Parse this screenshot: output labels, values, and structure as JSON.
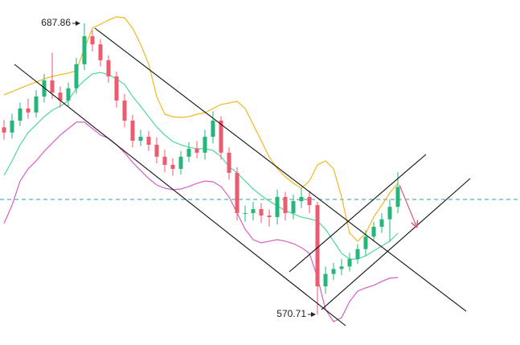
{
  "chart_data": {
    "type": "candlestick",
    "ylim": [
      558.4,
      697.25
    ],
    "open": [
      646.0,
      643.9,
      648.7,
      653.6,
      652.0,
      658.4,
      664.9,
      660.0,
      656.8,
      661.7,
      671.4,
      682.7,
      679.4,
      673.0,
      666.5,
      656.8,
      648.7,
      640.6,
      642.2,
      639.0,
      634.2,
      630.9,
      629.3,
      634.2,
      637.4,
      635.8,
      642.2,
      648.7,
      635.8,
      627.7,
      611.5,
      611.5,
      613.1,
      610.5,
      609.9,
      618.0,
      611.5,
      616.3,
      618.0,
      614.7,
      582.0,
      587.0,
      589.0,
      590.0,
      593.0,
      597.0,
      602.0,
      606.0,
      609.0,
      614.0
    ],
    "high": [
      649.0,
      651.5,
      656.0,
      657.5,
      661.0,
      667.5,
      676.0,
      662.5,
      664.0,
      674.0,
      687.86,
      685.0,
      681.5,
      675.0,
      668.5,
      659.5,
      651.0,
      645.0,
      644.5,
      642.0,
      637.0,
      633.5,
      636.5,
      640.0,
      640.5,
      645.0,
      652.5,
      650.5,
      638.0,
      630.0,
      614.5,
      616.0,
      615.5,
      613.0,
      621.0,
      620.0,
      619.0,
      621.5,
      620.5,
      616.0,
      590.0,
      591.5,
      593.0,
      595.5,
      599.0,
      604.5,
      608.0,
      611.5,
      617.0,
      628.0
    ],
    "low": [
      641.0,
      641.5,
      646.5,
      649.5,
      650.0,
      656.0,
      657.5,
      654.0,
      654.5,
      659.5,
      669.0,
      676.5,
      670.5,
      664.0,
      654.0,
      646.0,
      638.0,
      638.5,
      636.5,
      631.5,
      628.0,
      626.5,
      627.0,
      632.0,
      633.5,
      633.0,
      639.5,
      633.0,
      625.0,
      608.5,
      608.0,
      608.5,
      607.5,
      606.0,
      607.0,
      608.5,
      609.0,
      613.5,
      611.5,
      570.71,
      579.0,
      584.5,
      586.5,
      588.0,
      591.0,
      594.5,
      600.0,
      603.5,
      600.0,
      611.5
    ],
    "close": [
      643.9,
      648.7,
      653.6,
      652.0,
      658.4,
      664.9,
      660.0,
      656.8,
      661.7,
      671.4,
      682.7,
      679.4,
      673.0,
      666.5,
      656.8,
      648.7,
      640.6,
      642.2,
      639.0,
      634.2,
      630.9,
      629.3,
      634.2,
      637.4,
      635.8,
      642.2,
      648.7,
      635.8,
      627.7,
      611.5,
      611.5,
      613.1,
      610.5,
      609.9,
      618.0,
      611.5,
      616.3,
      618.0,
      614.7,
      582.0,
      587.0,
      589.0,
      590.0,
      593.0,
      597.0,
      602.0,
      606.0,
      609.0,
      614.0,
      622.0
    ],
    "up_color": "#26b57a",
    "down_color": "#ee5a6e",
    "bands": [
      {
        "color": "#f2b824",
        "values": [
          659.1,
          660.4,
          661.7,
          663.0,
          664.2,
          665.5,
          666.5,
          667.2,
          667.8,
          668.8,
          677.8,
          685.9,
          687.5,
          689.2,
          690.5,
          690.1,
          685.9,
          679.4,
          671.4,
          658.4,
          651.3,
          650.3,
          650.0,
          650.3,
          651.3,
          651.9,
          653.6,
          655.2,
          655.8,
          656.5,
          653.6,
          647.1,
          640.6,
          634.1,
          629.3,
          626.1,
          623.5,
          621.5,
          624.4,
          630.9,
          632.5,
          629.3,
          618.0,
          603.4,
          600.2,
          603.4,
          609.9,
          614.7,
          619.6,
          623.5
        ]
      },
      {
        "color": "#4fd89a",
        "values": [
          626.7,
          632.5,
          639.0,
          643.9,
          647.1,
          650.3,
          652.9,
          654.5,
          656.8,
          661.7,
          664.9,
          667.5,
          668.1,
          667.2,
          665.5,
          663.3,
          658.4,
          654.5,
          650.3,
          646.1,
          642.9,
          640.3,
          639.0,
          638.0,
          637.4,
          637.4,
          636.7,
          634.2,
          630.2,
          627.7,
          624.4,
          621.2,
          618.6,
          616.3,
          614.4,
          612.5,
          611.2,
          609.9,
          609.2,
          608.3,
          605.0,
          600.2,
          595.3,
          593.0,
          593.0,
          594.3,
          596.3,
          598.2,
          600.2,
          603.4
        ]
      },
      {
        "color": "#d65fc8",
        "values": [
          607.3,
          614.7,
          624.4,
          629.3,
          632.5,
          636.4,
          639.6,
          642.9,
          645.5,
          648.1,
          648.1,
          645.5,
          642.9,
          641.6,
          639.0,
          635.8,
          631.9,
          628.6,
          625.4,
          622.8,
          621.5,
          620.9,
          621.2,
          622.2,
          623.5,
          624.4,
          624.1,
          622.2,
          618.0,
          611.5,
          605.0,
          600.8,
          599.5,
          600.2,
          600.8,
          600.2,
          599.2,
          597.6,
          595.3,
          585.6,
          572.7,
          567.8,
          569.4,
          575.9,
          580.1,
          581.4,
          582.4,
          584.0,
          585.3,
          585.6
        ]
      }
    ],
    "price_line": 617.0,
    "price_line_color": "#26a69a"
  }
}
